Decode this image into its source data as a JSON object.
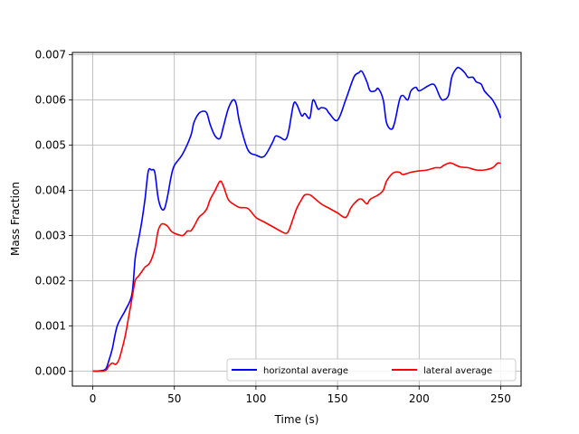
{
  "chart_data": {
    "type": "line",
    "title": "",
    "xlabel": "Time (s)",
    "ylabel": "Mass Fraction",
    "xlim": [
      -12.5,
      262.5
    ],
    "ylim": [
      -0.00033,
      0.00705
    ],
    "xticks": [
      0,
      50,
      100,
      150,
      200,
      250
    ],
    "yticks": [
      0.0,
      0.001,
      0.002,
      0.003,
      0.004,
      0.005,
      0.006,
      0.007
    ],
    "xtick_labels": [
      "0",
      "50",
      "100",
      "150",
      "200",
      "250"
    ],
    "ytick_labels": [
      "0.000",
      "0.001",
      "0.002",
      "0.003",
      "0.004",
      "0.005",
      "0.006",
      "0.007"
    ],
    "grid": true,
    "legend_position": "lower-right",
    "series": [
      {
        "name": "horizontal average",
        "color": "#0000ff",
        "x": [
          0,
          5,
          8,
          10,
          12,
          15,
          20,
          24,
          26,
          28,
          30,
          32,
          34,
          36,
          38,
          40,
          42,
          44,
          46,
          48,
          50,
          55,
          60,
          62,
          65,
          68,
          70,
          72,
          75,
          78,
          80,
          83,
          86,
          88,
          90,
          95,
          100,
          105,
          110,
          112,
          115,
          118,
          120,
          123,
          125,
          128,
          130,
          133,
          135,
          138,
          140,
          143,
          145,
          150,
          155,
          160,
          163,
          165,
          168,
          170,
          173,
          175,
          178,
          180,
          183,
          185,
          188,
          190,
          193,
          195,
          198,
          200,
          205,
          208,
          210,
          213,
          215,
          218,
          220,
          223,
          225,
          228,
          230,
          233,
          235,
          238,
          240,
          243,
          245,
          248,
          250
        ],
        "y": [
          0.0,
          1e-05,
          5e-05,
          0.00025,
          0.0005,
          0.001,
          0.00135,
          0.0017,
          0.0025,
          0.0029,
          0.0033,
          0.0038,
          0.00442,
          0.00445,
          0.0044,
          0.00385,
          0.0036,
          0.0036,
          0.0039,
          0.0043,
          0.00455,
          0.0048,
          0.0052,
          0.0055,
          0.0057,
          0.00575,
          0.0057,
          0.00545,
          0.0052,
          0.00515,
          0.0054,
          0.0058,
          0.006,
          0.0059,
          0.0055,
          0.0049,
          0.00478,
          0.00475,
          0.00505,
          0.0052,
          0.00517,
          0.00512,
          0.0053,
          0.0059,
          0.0059,
          0.00565,
          0.0057,
          0.0056,
          0.006,
          0.0058,
          0.00583,
          0.0058,
          0.0057,
          0.00555,
          0.006,
          0.0065,
          0.0066,
          0.00663,
          0.0064,
          0.0062,
          0.0062,
          0.00625,
          0.006,
          0.0055,
          0.00535,
          0.0055,
          0.006,
          0.0061,
          0.006,
          0.0062,
          0.00628,
          0.0062,
          0.0063,
          0.00635,
          0.0063,
          0.00605,
          0.006,
          0.0061,
          0.0065,
          0.0067,
          0.0067,
          0.0066,
          0.0065,
          0.0065,
          0.0064,
          0.00635,
          0.0062,
          0.00608,
          0.006,
          0.0058,
          0.0056
        ]
      },
      {
        "name": "lateral average",
        "color": "#ff0000",
        "x": [
          0,
          5,
          8,
          10,
          12,
          14,
          16,
          18,
          20,
          22,
          24,
          26,
          28,
          30,
          32,
          35,
          38,
          40,
          42,
          44,
          46,
          48,
          50,
          55,
          58,
          60,
          62,
          65,
          68,
          70,
          72,
          75,
          78,
          80,
          83,
          86,
          90,
          95,
          100,
          105,
          110,
          115,
          118,
          120,
          123,
          125,
          128,
          130,
          133,
          135,
          140,
          145,
          150,
          155,
          158,
          160,
          163,
          165,
          168,
          170,
          175,
          178,
          180,
          183,
          185,
          188,
          190,
          195,
          200,
          205,
          210,
          213,
          215,
          218,
          220,
          225,
          230,
          235,
          240,
          245,
          248,
          250
        ],
        "y": [
          0.0,
          0.0,
          2e-05,
          0.00012,
          0.00018,
          0.00015,
          0.00025,
          0.0005,
          0.0008,
          0.0012,
          0.0016,
          0.002,
          0.0021,
          0.0022,
          0.0023,
          0.0024,
          0.0027,
          0.0031,
          0.00325,
          0.00325,
          0.0032,
          0.0031,
          0.00305,
          0.003,
          0.0031,
          0.0031,
          0.0032,
          0.0034,
          0.0035,
          0.0036,
          0.0038,
          0.004,
          0.0042,
          0.0041,
          0.0038,
          0.0037,
          0.00362,
          0.0036,
          0.0034,
          0.0033,
          0.0032,
          0.0031,
          0.00305,
          0.0031,
          0.0034,
          0.0036,
          0.0038,
          0.0039,
          0.0039,
          0.00385,
          0.0037,
          0.0036,
          0.0035,
          0.0034,
          0.0036,
          0.0037,
          0.0038,
          0.0038,
          0.0037,
          0.0038,
          0.0039,
          0.004,
          0.0042,
          0.00435,
          0.0044,
          0.0044,
          0.00435,
          0.0044,
          0.00443,
          0.00445,
          0.0045,
          0.0045,
          0.00455,
          0.0046,
          0.0046,
          0.00452,
          0.0045,
          0.00445,
          0.00445,
          0.0045,
          0.0046,
          0.0046
        ]
      }
    ]
  }
}
